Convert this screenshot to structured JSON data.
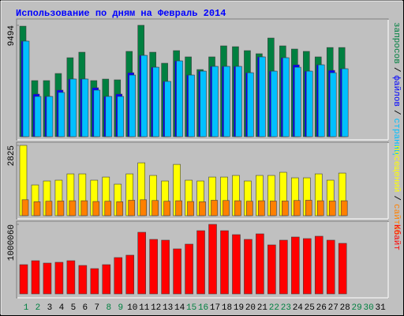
{
  "chart_data": [
    {
      "type": "bar",
      "title": "Использование по дням на Февраль 2014",
      "ylim": [
        0,
        9494
      ],
      "yticks": [
        9494
      ],
      "legend_separator": "/",
      "series": [
        {
          "name": "запросов",
          "color": "#008040",
          "values": [
            9420,
            4780,
            4780,
            5385,
            6730,
            7200,
            4780,
            4910,
            4845,
            7270,
            9494,
            7200,
            6260,
            7335,
            6800,
            5720,
            6800,
            7740,
            7670,
            7335,
            7070,
            8410,
            7740,
            7470,
            7270,
            6800,
            7600,
            7600,
            null,
            null,
            null
          ]
        },
        {
          "name": "файлов",
          "color": "#0000ff",
          "values": [
            8145,
            3630,
            3430,
            3970,
            4915,
            4915,
            4170,
            3430,
            3630,
            5450,
            6930,
            5920,
            4710,
            6460,
            5250,
            5585,
            5990,
            5990,
            5990,
            5450,
            6800,
            5585,
            6730,
            6120,
            5585,
            6125,
            5650,
            5790,
            null,
            null,
            null
          ]
        },
        {
          "name": "страниц",
          "color": "#00c0ff",
          "values": [
            8145,
            3430,
            3430,
            3770,
            4915,
            4915,
            3970,
            3430,
            3430,
            5250,
            6930,
            5920,
            4710,
            6460,
            5250,
            5585,
            5990,
            5990,
            5990,
            5450,
            6800,
            5585,
            6730,
            5920,
            5585,
            6125,
            5450,
            5790,
            null,
            null,
            null
          ]
        }
      ]
    },
    {
      "type": "bar",
      "ylim": [
        0,
        2825
      ],
      "yticks": [
        2825
      ],
      "legend_separator": "/",
      "series": [
        {
          "name": "посещений",
          "color": "#ffff00",
          "values": [
            2825,
            1236,
            1395,
            1427,
            1680,
            1680,
            1427,
            1553,
            1268,
            1680,
            2124,
            1617,
            1395,
            2060,
            1427,
            1395,
            1553,
            1553,
            1617,
            1395,
            1617,
            1617,
            1744,
            1522,
            1522,
            1680,
            1427,
            1712,
            null,
            null,
            null
          ]
        },
        {
          "name": "сайтов",
          "color": "#ff8000",
          "values": [
            640,
            560,
            580,
            590,
            600,
            600,
            570,
            580,
            560,
            620,
            640,
            610,
            580,
            600,
            570,
            560,
            620,
            610,
            600,
            580,
            600,
            590,
            590,
            610,
            620,
            600,
            590,
            600,
            null,
            null,
            null
          ]
        }
      ]
    },
    {
      "type": "bar",
      "ylim": [
        0,
        1000060
      ],
      "yticks": [
        1000060
      ],
      "categories": [
        "1",
        "2",
        "3",
        "4",
        "5",
        "6",
        "7",
        "8",
        "9",
        "10",
        "11",
        "12",
        "13",
        "14",
        "15",
        "16",
        "17",
        "18",
        "19",
        "20",
        "21",
        "22",
        "23",
        "24",
        "25",
        "26",
        "27",
        "28",
        "29",
        "30",
        "31"
      ],
      "category_colors": [
        "#008040",
        "#008040",
        "#000000",
        "#000000",
        "#000000",
        "#000000",
        "#000000",
        "#008040",
        "#008040",
        "#000000",
        "#000000",
        "#000000",
        "#000000",
        "#000000",
        "#008040",
        "#008040",
        "#000000",
        "#000000",
        "#000000",
        "#000000",
        "#000000",
        "#008040",
        "#008040",
        "#000000",
        "#000000",
        "#000000",
        "#000000",
        "#000000",
        "#008040",
        "#008040",
        "#000000"
      ],
      "series": [
        {
          "name": "Кбайт",
          "color": "#ff0000",
          "values": [
            420470,
            477290,
            443200,
            454560,
            477290,
            409100,
            363650,
            420470,
            522740,
            556840,
            886390,
            784120,
            772750,
            647750,
            715930,
            909120,
            1000060,
            909120,
            852300,
            784120,
            863660,
            704570,
            772750,
            818210,
            795480,
            829570,
            772750,
            727300,
            null,
            null,
            null
          ]
        }
      ]
    }
  ]
}
